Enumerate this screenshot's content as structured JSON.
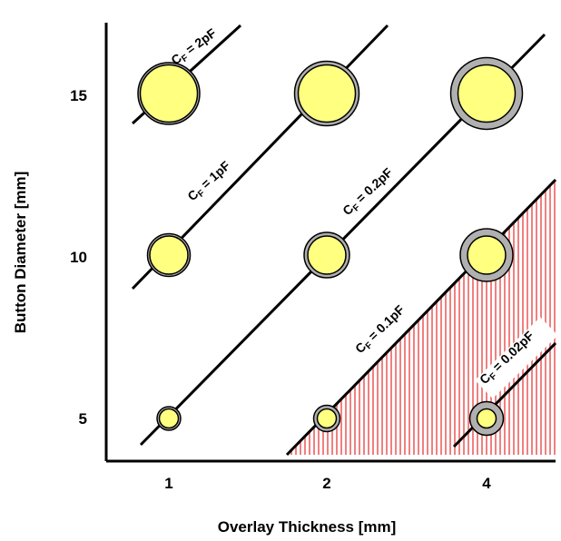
{
  "chart_data": {
    "type": "scatter",
    "xlabel": "Overlay Thickness [mm]",
    "ylabel": "Button Diameter [mm]",
    "x_ticks": [
      "1",
      "2",
      "4"
    ],
    "y_ticks": [
      "5",
      "10",
      "15"
    ],
    "points": [
      {
        "thickness": "1",
        "diameter": 5
      },
      {
        "thickness": "1",
        "diameter": 10
      },
      {
        "thickness": "1",
        "diameter": 15
      },
      {
        "thickness": "2",
        "diameter": 5
      },
      {
        "thickness": "2",
        "diameter": 10
      },
      {
        "thickness": "2",
        "diameter": 15
      },
      {
        "thickness": "4",
        "diameter": 5
      },
      {
        "thickness": "4",
        "diameter": 10
      },
      {
        "thickness": "4",
        "diameter": 15
      }
    ],
    "cf_lines": [
      {
        "prefix": "C",
        "sub": "F",
        "rest": " = 2pF"
      },
      {
        "prefix": "C",
        "sub": "F",
        "rest": " = 1pF"
      },
      {
        "prefix": "C",
        "sub": "F",
        "rest": " = 0.2pF"
      },
      {
        "prefix": "C",
        "sub": "F",
        "rest": " = 0.1pF"
      },
      {
        "prefix": "C",
        "sub": "F",
        "rest": " = 0.02pF"
      }
    ],
    "grid": false,
    "colors": {
      "button_fill": "#ffff80",
      "overlay_ring": "#b0b0b0",
      "hatch": "#f08080"
    }
  }
}
